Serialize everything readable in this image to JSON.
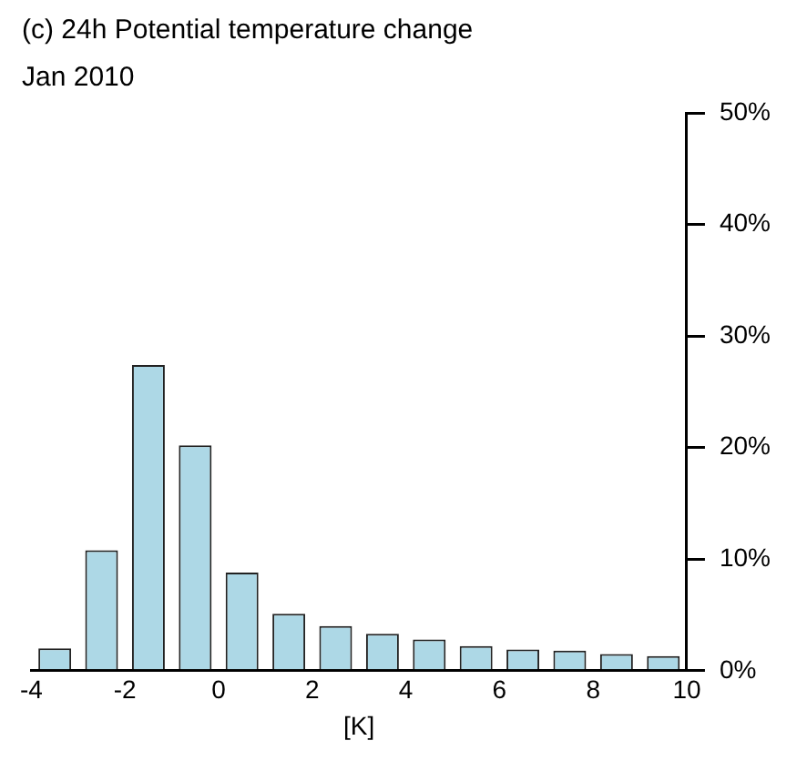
{
  "chart_data": {
    "type": "histogram",
    "title": "(c) 24h Potential temperature change",
    "subtitle": "Jan 2010",
    "xlabel": "[K]",
    "bins": [
      -4,
      -3,
      -2,
      -1,
      0,
      1,
      2,
      3,
      4,
      5,
      6,
      7,
      8,
      9,
      10
    ],
    "values": [
      2.0,
      10.8,
      27.4,
      20.2,
      8.8,
      5.1,
      4.0,
      3.3,
      2.8,
      2.2,
      1.9,
      1.8,
      1.5,
      1.3
    ],
    "color": "#add8e6",
    "xlim": [
      -4,
      10
    ],
    "xticks": [
      -4,
      -2,
      0,
      2,
      4,
      6,
      8,
      10
    ],
    "ylim": [
      0,
      50
    ],
    "yticks": [
      {
        "value": 0,
        "label": "0%"
      },
      {
        "value": 10,
        "label": "10%"
      },
      {
        "value": 20,
        "label": "20%"
      },
      {
        "value": 30,
        "label": "30%"
      },
      {
        "value": 40,
        "label": "40%"
      },
      {
        "value": 50,
        "label": "50%"
      }
    ],
    "grid": false,
    "legend": false
  }
}
